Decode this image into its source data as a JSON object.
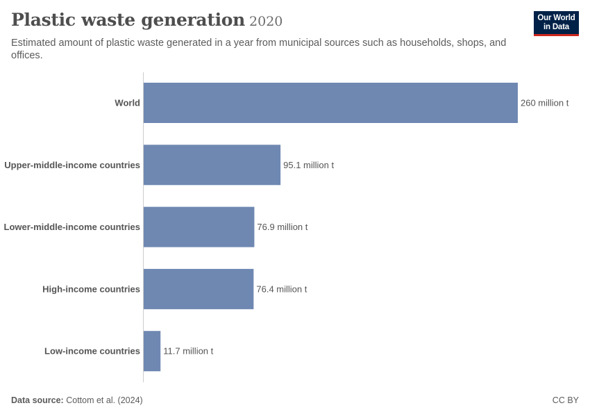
{
  "header": {
    "title": "Plastic waste generation",
    "year": "2020",
    "subtitle": "Estimated amount of plastic waste generated in a year from municipal sources such as households, shops, and offices.",
    "logo_line1": "Our World",
    "logo_line2": "in Data"
  },
  "footer": {
    "source_label": "Data source:",
    "source_value": "Cottom et al. (2024)",
    "license": "CC BY"
  },
  "colors": {
    "bar": "#6f88b2",
    "axis": "#cccccc",
    "logo_bg": "#002147",
    "logo_accent": "#ce261e"
  },
  "chart_data": {
    "type": "bar",
    "orientation": "horizontal",
    "categories": [
      "World",
      "Upper-middle-income countries",
      "Lower-middle-income countries",
      "High-income countries",
      "Low-income countries"
    ],
    "values": [
      260,
      95.1,
      76.9,
      76.4,
      11.7
    ],
    "value_labels": [
      "260 million t",
      "95.1 million t",
      "76.9 million t",
      "76.4 million t",
      "11.7 million t"
    ],
    "xlim": [
      0,
      260
    ],
    "grid": false,
    "legend": "none"
  }
}
